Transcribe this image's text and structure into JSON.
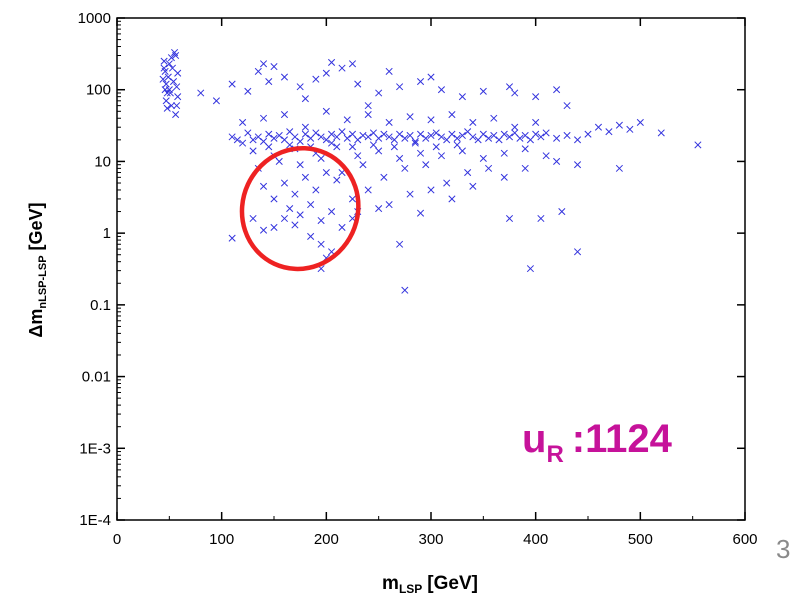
{
  "chart_data": {
    "type": "scatter",
    "xlabel_main": "m",
    "xlabel_sub": "LSP",
    "xlabel_unit": "[GeV]",
    "ylabel_prefix": "Δm",
    "ylabel_sub": "nLSP-LSP",
    "ylabel_unit": "[GeV]",
    "xlim": [
      0,
      600
    ],
    "ylim": [
      0.0001,
      1000
    ],
    "yscale": "log",
    "x_ticks": [
      0,
      100,
      200,
      300,
      400,
      500,
      600
    ],
    "x_tick_labels": [
      "0",
      "100",
      "200",
      "300",
      "400",
      "500",
      "600"
    ],
    "y_ticks": [
      0.0001,
      0.001,
      0.01,
      0.1,
      1,
      10,
      100,
      1000
    ],
    "y_tick_labels": [
      "1E-4",
      "1E-3",
      "0.01",
      "0.1",
      "1",
      "10",
      "100",
      "1000"
    ],
    "marker": "x",
    "marker_color": "#3333dd",
    "annotation": {
      "main": "u",
      "sub": "R",
      "value": ":1124",
      "color": "#c6129a"
    },
    "highlight_ellipse": {
      "color": "#ee2222",
      "cx": 175,
      "cy": 2.2,
      "rx": 55,
      "ry_decades": 0.85
    },
    "corner_text": "3",
    "series": [
      {
        "points": [
          [
            45,
            250
          ],
          [
            46,
            180
          ],
          [
            47,
            120
          ],
          [
            48,
            90
          ],
          [
            47,
            70
          ],
          [
            49,
            150
          ],
          [
            50,
            100
          ],
          [
            52,
            60
          ],
          [
            53,
            200
          ],
          [
            54,
            130
          ],
          [
            55,
            330
          ],
          [
            56,
            300
          ],
          [
            57,
            110
          ],
          [
            58,
            80
          ],
          [
            44,
            140
          ],
          [
            46,
            100
          ],
          [
            48,
            55
          ],
          [
            51,
            90
          ],
          [
            56,
            45
          ],
          [
            58,
            170
          ],
          [
            52,
            280
          ],
          [
            45,
            200
          ],
          [
            57,
            60
          ],
          [
            50,
            230
          ],
          [
            80,
            90
          ],
          [
            95,
            70
          ],
          [
            110,
            120
          ],
          [
            125,
            95
          ],
          [
            135,
            180
          ],
          [
            145,
            130
          ],
          [
            160,
            150
          ],
          [
            175,
            110
          ],
          [
            190,
            140
          ],
          [
            200,
            170
          ],
          [
            215,
            200
          ],
          [
            230,
            120
          ],
          [
            250,
            90
          ],
          [
            270,
            110
          ],
          [
            290,
            130
          ],
          [
            310,
            100
          ],
          [
            330,
            80
          ],
          [
            350,
            95
          ],
          [
            375,
            110
          ],
          [
            400,
            80
          ],
          [
            420,
            100
          ],
          [
            140,
            230
          ],
          [
            150,
            210
          ],
          [
            205,
            240
          ],
          [
            225,
            230
          ],
          [
            260,
            180
          ],
          [
            300,
            150
          ],
          [
            380,
            90
          ],
          [
            430,
            60
          ],
          [
            180,
            75
          ],
          [
            240,
            60
          ],
          [
            110,
            22
          ],
          [
            115,
            20
          ],
          [
            120,
            18
          ],
          [
            125,
            25
          ],
          [
            130,
            20
          ],
          [
            135,
            22
          ],
          [
            140,
            19
          ],
          [
            145,
            24
          ],
          [
            150,
            21
          ],
          [
            155,
            23
          ],
          [
            160,
            20
          ],
          [
            165,
            26
          ],
          [
            170,
            22
          ],
          [
            175,
            19
          ],
          [
            180,
            24
          ],
          [
            185,
            21
          ],
          [
            190,
            25
          ],
          [
            195,
            22
          ],
          [
            200,
            20
          ],
          [
            205,
            24
          ],
          [
            210,
            22
          ],
          [
            215,
            26
          ],
          [
            220,
            21
          ],
          [
            225,
            24
          ],
          [
            230,
            20
          ],
          [
            235,
            23
          ],
          [
            240,
            22
          ],
          [
            245,
            25
          ],
          [
            250,
            21
          ],
          [
            255,
            24
          ],
          [
            260,
            22
          ],
          [
            265,
            20
          ],
          [
            270,
            24
          ],
          [
            275,
            21
          ],
          [
            280,
            23
          ],
          [
            285,
            19
          ],
          [
            290,
            24
          ],
          [
            295,
            21
          ],
          [
            300,
            23
          ],
          [
            305,
            25
          ],
          [
            310,
            22
          ],
          [
            315,
            20
          ],
          [
            320,
            24
          ],
          [
            325,
            21
          ],
          [
            330,
            23
          ],
          [
            335,
            26
          ],
          [
            340,
            22
          ],
          [
            345,
            20
          ],
          [
            350,
            24
          ],
          [
            355,
            21
          ],
          [
            360,
            23
          ],
          [
            365,
            20
          ],
          [
            370,
            24
          ],
          [
            375,
            22
          ],
          [
            380,
            25
          ],
          [
            385,
            21
          ],
          [
            390,
            23
          ],
          [
            395,
            20
          ],
          [
            400,
            24
          ],
          [
            405,
            22
          ],
          [
            410,
            25
          ],
          [
            420,
            21
          ],
          [
            430,
            23
          ],
          [
            440,
            20
          ],
          [
            450,
            24
          ],
          [
            460,
            30
          ],
          [
            470,
            26
          ],
          [
            480,
            32
          ],
          [
            490,
            28
          ],
          [
            500,
            35
          ],
          [
            520,
            25
          ],
          [
            555,
            17
          ],
          [
            120,
            35
          ],
          [
            140,
            40
          ],
          [
            160,
            45
          ],
          [
            180,
            30
          ],
          [
            200,
            50
          ],
          [
            220,
            38
          ],
          [
            240,
            45
          ],
          [
            260,
            35
          ],
          [
            280,
            42
          ],
          [
            300,
            38
          ],
          [
            320,
            45
          ],
          [
            340,
            35
          ],
          [
            360,
            40
          ],
          [
            380,
            30
          ],
          [
            400,
            35
          ],
          [
            130,
            14
          ],
          [
            150,
            12
          ],
          [
            170,
            15
          ],
          [
            190,
            13
          ],
          [
            210,
            16
          ],
          [
            230,
            12
          ],
          [
            250,
            14
          ],
          [
            270,
            11
          ],
          [
            290,
            13
          ],
          [
            310,
            12
          ],
          [
            330,
            14
          ],
          [
            350,
            11
          ],
          [
            370,
            13
          ],
          [
            390,
            15
          ],
          [
            410,
            12
          ],
          [
            145,
            16
          ],
          [
            165,
            17
          ],
          [
            185,
            16
          ],
          [
            205,
            18
          ],
          [
            225,
            16
          ],
          [
            245,
            17
          ],
          [
            265,
            16
          ],
          [
            285,
            18
          ],
          [
            305,
            16
          ],
          [
            325,
            17
          ],
          [
            135,
            8
          ],
          [
            155,
            10
          ],
          [
            175,
            9
          ],
          [
            195,
            11
          ],
          [
            215,
            7
          ],
          [
            235,
            9
          ],
          [
            255,
            6
          ],
          [
            275,
            8
          ],
          [
            295,
            9
          ],
          [
            315,
            5
          ],
          [
            335,
            7
          ],
          [
            355,
            8
          ],
          [
            370,
            6
          ],
          [
            390,
            8
          ],
          [
            420,
            10
          ],
          [
            440,
            9
          ],
          [
            480,
            8
          ],
          [
            140,
            4.5
          ],
          [
            160,
            5
          ],
          [
            170,
            3.5
          ],
          [
            180,
            6
          ],
          [
            190,
            4
          ],
          [
            200,
            7
          ],
          [
            210,
            5.5
          ],
          [
            225,
            3
          ],
          [
            240,
            4
          ],
          [
            260,
            2.5
          ],
          [
            280,
            3.5
          ],
          [
            300,
            4
          ],
          [
            320,
            3
          ],
          [
            340,
            4.5
          ],
          [
            150,
            3
          ],
          [
            165,
            2.2
          ],
          [
            175,
            1.8
          ],
          [
            185,
            2.5
          ],
          [
            195,
            1.5
          ],
          [
            205,
            2
          ],
          [
            215,
            1.2
          ],
          [
            150,
            1.2
          ],
          [
            160,
            1.6
          ],
          [
            170,
            1.3
          ],
          [
            185,
            0.9
          ],
          [
            195,
            0.7
          ],
          [
            200,
            0.45
          ],
          [
            205,
            0.55
          ],
          [
            195,
            0.32
          ],
          [
            130,
            1.6
          ],
          [
            140,
            1.1
          ],
          [
            110,
            0.85
          ],
          [
            225,
            1.6
          ],
          [
            230,
            2
          ],
          [
            250,
            2.2
          ],
          [
            270,
            0.7
          ],
          [
            275,
            0.16
          ],
          [
            290,
            1.9
          ],
          [
            375,
            1.6
          ],
          [
            405,
            1.6
          ],
          [
            425,
            2
          ],
          [
            395,
            0.32
          ],
          [
            440,
            0.55
          ]
        ]
      }
    ]
  }
}
